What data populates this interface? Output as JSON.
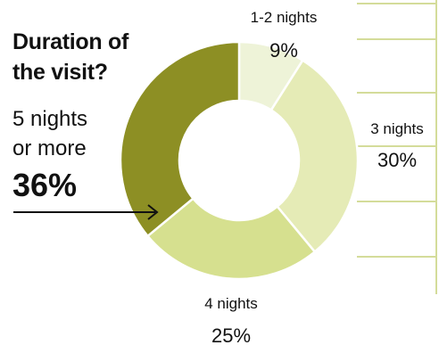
{
  "chart_data": {
    "type": "donut",
    "title": "Duration of the visit?",
    "title_lines": [
      "Duration of",
      "the visit?"
    ],
    "highlight": {
      "label_lines": [
        "5 nights",
        "or more"
      ],
      "value": "36%"
    },
    "start": "12 o'clock, clockwise",
    "slices": [
      {
        "label": "1-2 nights",
        "value": 9,
        "display": "9%",
        "color": "#eef3d8"
      },
      {
        "label": "3 nights",
        "value": 30,
        "display": "30%",
        "color": "#e5ebb6"
      },
      {
        "label": "4 nights",
        "value": 25,
        "display": "25%",
        "color": "#d6e08f"
      },
      {
        "label": "5 nights or more",
        "value": 36,
        "display": "36%",
        "color": "#8d8f24"
      }
    ],
    "slice_labels_outside": [
      0,
      1,
      2
    ],
    "background_frame_color": "#d4dc9a"
  }
}
